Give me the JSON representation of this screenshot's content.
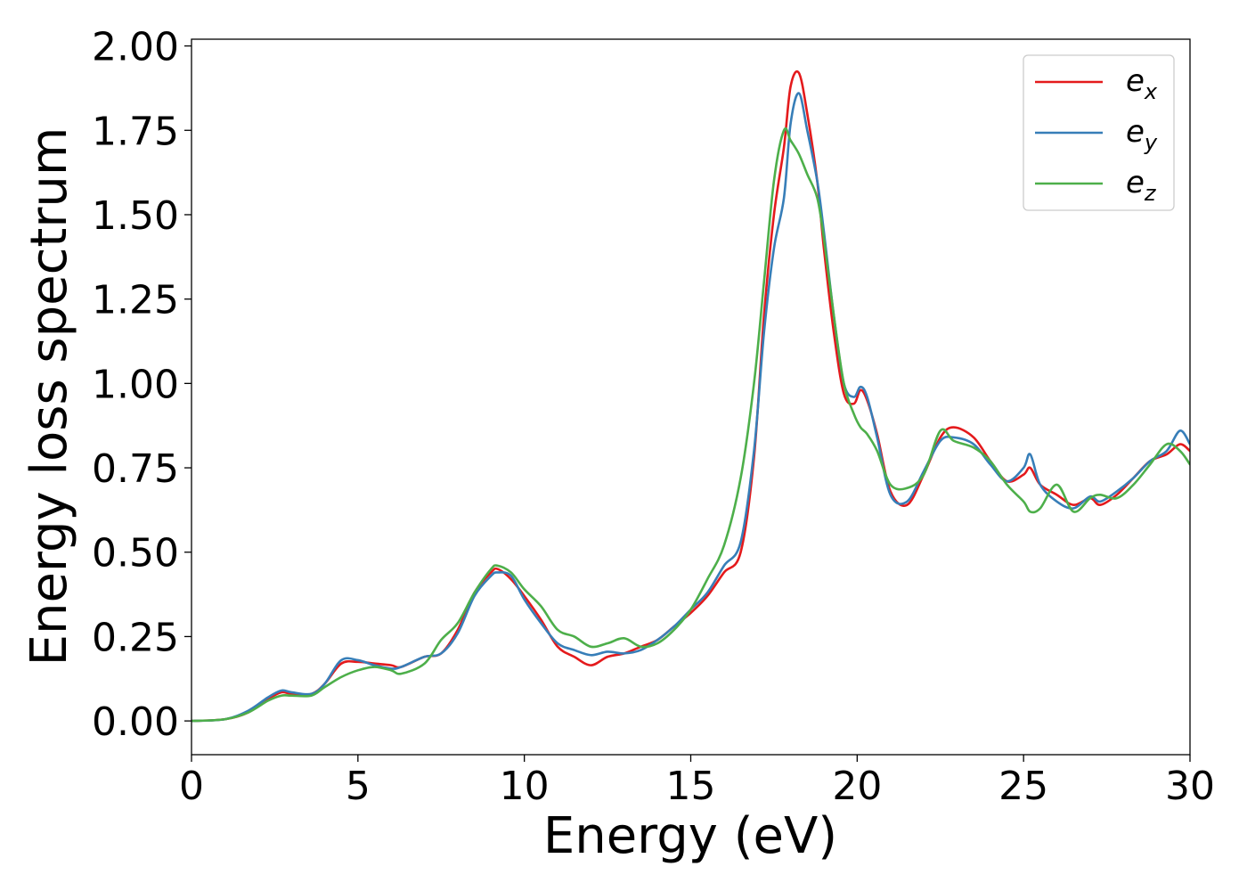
{
  "chart_data": {
    "type": "line",
    "title": "",
    "xlabel": "Energy (eV)",
    "ylabel": "Energy loss spectrum",
    "xlim": [
      0,
      30
    ],
    "ylim": [
      -0.1,
      2.02
    ],
    "xticks": [
      0,
      5,
      10,
      15,
      20,
      25,
      30
    ],
    "xtick_labels": [
      "0",
      "5",
      "10",
      "15",
      "20",
      "25",
      "30"
    ],
    "yticks": [
      0,
      0.25,
      0.5,
      0.75,
      1.0,
      1.25,
      1.5,
      1.75,
      2.0
    ],
    "ytick_labels": [
      "0.00",
      "0.25",
      "0.50",
      "0.75",
      "1.00",
      "1.25",
      "1.50",
      "1.75",
      "2.00"
    ],
    "grid": false,
    "legend_position": "top-right",
    "series": [
      {
        "name": "e_x",
        "label_base": "e",
        "label_sub": "x",
        "color": "#e41a1c",
        "x": [
          0,
          1,
          1.7,
          2.3,
          2.7,
          3.0,
          3.6,
          4.0,
          4.5,
          5.0,
          5.5,
          6.0,
          6.3,
          7.0,
          7.5,
          8.0,
          8.5,
          9.0,
          9.2,
          9.6,
          10.0,
          10.5,
          11.0,
          11.5,
          12.0,
          12.5,
          13.0,
          13.5,
          14.0,
          14.5,
          15.0,
          15.5,
          16.0,
          16.5,
          16.9,
          17.2,
          17.5,
          17.8,
          18.0,
          18.25,
          18.5,
          18.8,
          19.0,
          19.3,
          19.6,
          19.9,
          20.1,
          20.3,
          20.6,
          21.0,
          21.5,
          22.0,
          22.5,
          22.9,
          23.5,
          24.0,
          24.5,
          25.0,
          25.2,
          25.5,
          26.0,
          26.5,
          27.0,
          27.3,
          27.8,
          28.3,
          28.8,
          29.3,
          29.7,
          30.0
        ],
        "y": [
          0.0,
          0.005,
          0.025,
          0.065,
          0.085,
          0.08,
          0.08,
          0.11,
          0.17,
          0.175,
          0.17,
          0.165,
          0.16,
          0.19,
          0.2,
          0.27,
          0.38,
          0.44,
          0.45,
          0.42,
          0.37,
          0.3,
          0.22,
          0.19,
          0.165,
          0.19,
          0.2,
          0.22,
          0.24,
          0.28,
          0.32,
          0.37,
          0.44,
          0.5,
          0.78,
          1.2,
          1.5,
          1.7,
          1.88,
          1.92,
          1.8,
          1.6,
          1.4,
          1.15,
          0.97,
          0.94,
          0.98,
          0.95,
          0.85,
          0.68,
          0.64,
          0.73,
          0.84,
          0.87,
          0.84,
          0.77,
          0.71,
          0.73,
          0.75,
          0.7,
          0.67,
          0.64,
          0.66,
          0.64,
          0.67,
          0.72,
          0.77,
          0.79,
          0.82,
          0.8
        ]
      },
      {
        "name": "e_y",
        "label_base": "e",
        "label_sub": "y",
        "color": "#377eb8",
        "x": [
          0,
          1,
          1.7,
          2.3,
          2.7,
          3.0,
          3.6,
          4.0,
          4.5,
          5.0,
          5.5,
          6.0,
          6.3,
          7.0,
          7.5,
          8.0,
          8.5,
          9.0,
          9.2,
          9.6,
          10.0,
          10.5,
          11.0,
          11.5,
          12.0,
          12.5,
          13.0,
          13.5,
          14.0,
          14.5,
          15.0,
          15.5,
          16.0,
          16.5,
          16.9,
          17.2,
          17.5,
          17.8,
          18.0,
          18.25,
          18.5,
          18.8,
          19.0,
          19.3,
          19.6,
          19.9,
          20.1,
          20.3,
          20.6,
          21.0,
          21.5,
          22.0,
          22.5,
          22.9,
          23.5,
          24.0,
          24.5,
          25.0,
          25.2,
          25.5,
          26.0,
          26.5,
          27.0,
          27.3,
          27.8,
          28.3,
          28.8,
          29.3,
          29.7,
          30.0
        ],
        "y": [
          0.0,
          0.005,
          0.03,
          0.07,
          0.09,
          0.085,
          0.08,
          0.11,
          0.18,
          0.18,
          0.165,
          0.155,
          0.16,
          0.19,
          0.2,
          0.26,
          0.37,
          0.43,
          0.44,
          0.43,
          0.36,
          0.29,
          0.23,
          0.21,
          0.195,
          0.205,
          0.2,
          0.21,
          0.24,
          0.28,
          0.33,
          0.38,
          0.46,
          0.53,
          0.8,
          1.15,
          1.4,
          1.55,
          1.77,
          1.86,
          1.75,
          1.6,
          1.45,
          1.2,
          1.0,
          0.96,
          0.99,
          0.96,
          0.84,
          0.67,
          0.65,
          0.74,
          0.83,
          0.84,
          0.82,
          0.76,
          0.71,
          0.75,
          0.79,
          0.7,
          0.65,
          0.63,
          0.665,
          0.65,
          0.68,
          0.72,
          0.77,
          0.8,
          0.86,
          0.82
        ]
      },
      {
        "name": "e_z",
        "label_base": "e",
        "label_sub": "z",
        "color": "#4daf4a",
        "x": [
          0,
          1,
          1.7,
          2.3,
          2.7,
          3.0,
          3.6,
          4.0,
          4.5,
          5.0,
          5.5,
          6.0,
          6.3,
          7.0,
          7.5,
          8.0,
          8.5,
          9.0,
          9.2,
          9.6,
          10.0,
          10.5,
          11.0,
          11.5,
          12.0,
          12.5,
          13.0,
          13.5,
          14.0,
          14.5,
          15.0,
          15.5,
          16.0,
          16.5,
          16.9,
          17.2,
          17.5,
          17.8,
          18.0,
          18.25,
          18.5,
          18.8,
          19.0,
          19.3,
          19.6,
          19.9,
          20.1,
          20.3,
          20.6,
          21.0,
          21.5,
          22.0,
          22.5,
          22.9,
          23.5,
          24.0,
          24.5,
          25.0,
          25.2,
          25.5,
          26.0,
          26.5,
          27.0,
          27.3,
          27.8,
          28.3,
          28.8,
          29.3,
          29.7,
          30.0
        ],
        "y": [
          0.0,
          0.005,
          0.025,
          0.06,
          0.075,
          0.075,
          0.075,
          0.1,
          0.13,
          0.15,
          0.16,
          0.15,
          0.14,
          0.17,
          0.24,
          0.29,
          0.38,
          0.45,
          0.46,
          0.44,
          0.39,
          0.34,
          0.27,
          0.25,
          0.22,
          0.23,
          0.245,
          0.22,
          0.23,
          0.27,
          0.33,
          0.42,
          0.52,
          0.72,
          1.0,
          1.3,
          1.6,
          1.75,
          1.72,
          1.68,
          1.62,
          1.55,
          1.43,
          1.2,
          1.0,
          0.91,
          0.87,
          0.85,
          0.8,
          0.7,
          0.69,
          0.73,
          0.86,
          0.83,
          0.81,
          0.77,
          0.7,
          0.65,
          0.62,
          0.63,
          0.7,
          0.62,
          0.66,
          0.67,
          0.66,
          0.7,
          0.76,
          0.82,
          0.8,
          0.76
        ]
      }
    ]
  }
}
